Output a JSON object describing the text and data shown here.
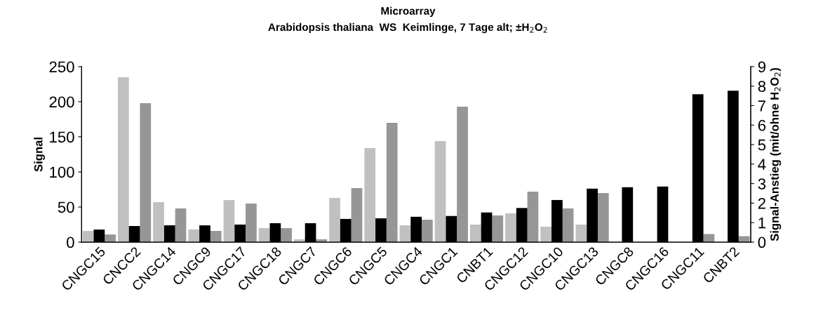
{
  "chart_data": {
    "type": "bar",
    "title": "Microarray",
    "subtitle": "Arabidopsis thaliana  WS  Keimlinge, 7 Tage alt; ±H$_{2}$O$_{2}$",
    "ylabel": "Signal",
    "y2label": "Signal-Anstieg (mit/ohne H$_{2}$O$_{2}$)",
    "categories": [
      "CNGC15",
      "CNCC2",
      "CNGC14",
      "CNGC9",
      "CNGC17",
      "CNGC18",
      "CNGC7",
      "CNGC6",
      "CNGC5",
      "CNGC4",
      "CNGC1",
      "CNBT1",
      "CNGC12",
      "CNGC10",
      "CNGC13",
      "CNGC8",
      "CNGC16",
      "CNGC11",
      "CNBT2"
    ],
    "series": [
      {
        "color": "#c0c0c0",
        "values": [
          16,
          235,
          57,
          18,
          60,
          20,
          4,
          63,
          134,
          24,
          144,
          25,
          41,
          22,
          25,
          0,
          0,
          0,
          0
        ]
      },
      {
        "color": "#000000",
        "axis": "y2",
        "values": [
          0.65,
          0.83,
          0.86,
          0.86,
          0.9,
          0.97,
          0.97,
          1.19,
          1.22,
          1.3,
          1.34,
          1.52,
          1.75,
          2.16,
          2.74,
          2.81,
          2.85,
          7.58,
          7.76
        ]
      },
      {
        "color": "#969696",
        "values": [
          11,
          198,
          48,
          16,
          55,
          20,
          4,
          77,
          170,
          32,
          193,
          38,
          72,
          48,
          70,
          0,
          0,
          11.5,
          8.5
        ]
      }
    ],
    "ylim": [
      0,
      250
    ],
    "yticks": [
      0,
      50,
      100,
      150,
      200,
      250
    ],
    "y2lim": [
      0,
      9
    ],
    "y2ticks": [
      0,
      1,
      2,
      3,
      4,
      5,
      6,
      7,
      8,
      9
    ],
    "grid": false,
    "legend": false
  }
}
